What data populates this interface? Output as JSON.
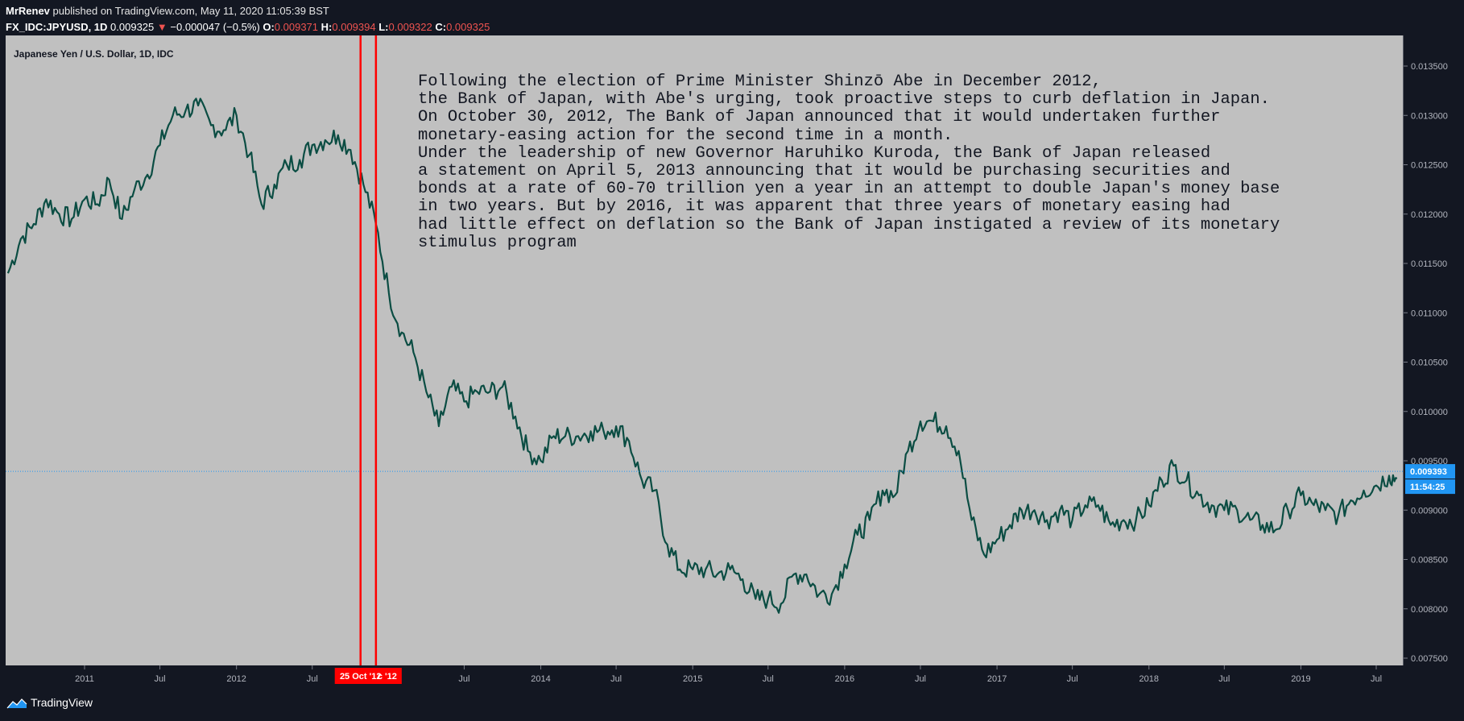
{
  "header": {
    "author": "MrRenev",
    "published": "published on TradingView.com, May 11, 2020 11:05:39 BST",
    "symbol": "FX_IDC:JPYUSD, 1D",
    "last": "0.009325",
    "change_arrow": "▼",
    "change": "−0.000047 (−0.5%)",
    "o_label": "O:",
    "o_value": "0.009371",
    "h_label": "H:",
    "h_value": "0.009394",
    "l_label": "L:",
    "l_value": "0.009322",
    "c_label": "C:",
    "c_value": "0.009325"
  },
  "legend": "Japanese Yen / U.S. Dollar, 1D, IDC",
  "annotation": "Following the election of Prime Minister Shinzō Abe in December 2012,\nthe Bank of Japan, with Abe's urging, took proactive steps to curb deflation in Japan.\nOn October 30, 2012, The Bank of Japan announced that it would undertaken further\nmonetary-easing action for the second time in a month.\nUnder the leadership of new Governor Haruhiko Kuroda, the Bank of Japan released\na statement on April 5, 2013 announcing that it would be purchasing securities and\nbonds at a rate of 60-70 trillion yen a year in an attempt to double Japan's money base\nin two years. But by 2016, it was apparent that three years of monetary easing had\nhad little effect on deflation so the Bank of Japan instigated a review of its monetary\nstimulus program",
  "footer": {
    "brand": "TradingView"
  },
  "colors": {
    "line": "#0b4d43",
    "marker": "#ff0000",
    "price_label": "#2196f3",
    "pane": "#c0c0c0",
    "background": "#131722",
    "change_down": "#ef5350"
  },
  "chart_data": {
    "type": "line",
    "series": [
      {
        "values": [
          {
            "x": "2010-07-01",
            "y": 0.0114
          },
          {
            "x": "2010-08-01",
            "y": 0.01175
          },
          {
            "x": "2010-09-01",
            "y": 0.0119
          },
          {
            "x": "2010-10-01",
            "y": 0.01215
          },
          {
            "x": "2010-11-01",
            "y": 0.012
          },
          {
            "x": "2010-12-01",
            "y": 0.01195
          },
          {
            "x": "2011-01-01",
            "y": 0.01215
          },
          {
            "x": "2011-02-01",
            "y": 0.0121
          },
          {
            "x": "2011-03-01",
            "y": 0.01235
          },
          {
            "x": "2011-04-01",
            "y": 0.01195
          },
          {
            "x": "2011-05-01",
            "y": 0.01225
          },
          {
            "x": "2011-06-01",
            "y": 0.0124
          },
          {
            "x": "2011-07-01",
            "y": 0.0127
          },
          {
            "x": "2011-08-01",
            "y": 0.013
          },
          {
            "x": "2011-09-01",
            "y": 0.01305
          },
          {
            "x": "2011-10-01",
            "y": 0.0131
          },
          {
            "x": "2011-11-01",
            "y": 0.0129
          },
          {
            "x": "2011-12-01",
            "y": 0.01285
          },
          {
            "x": "2012-01-01",
            "y": 0.013
          },
          {
            "x": "2012-02-01",
            "y": 0.0126
          },
          {
            "x": "2012-03-01",
            "y": 0.0121
          },
          {
            "x": "2012-04-01",
            "y": 0.0123
          },
          {
            "x": "2012-05-01",
            "y": 0.0125
          },
          {
            "x": "2012-06-01",
            "y": 0.01255
          },
          {
            "x": "2012-07-01",
            "y": 0.0127
          },
          {
            "x": "2012-08-01",
            "y": 0.01275
          },
          {
            "x": "2012-09-01",
            "y": 0.0128
          },
          {
            "x": "2012-10-01",
            "y": 0.01265
          },
          {
            "x": "2012-11-01",
            "y": 0.0123
          },
          {
            "x": "2012-12-01",
            "y": 0.0119
          },
          {
            "x": "2013-01-01",
            "y": 0.0112
          },
          {
            "x": "2013-02-01",
            "y": 0.0108
          },
          {
            "x": "2013-03-01",
            "y": 0.0106
          },
          {
            "x": "2013-04-01",
            "y": 0.0102
          },
          {
            "x": "2013-05-01",
            "y": 0.00985
          },
          {
            "x": "2013-06-01",
            "y": 0.01025
          },
          {
            "x": "2013-07-01",
            "y": 0.0101
          },
          {
            "x": "2013-08-01",
            "y": 0.0102
          },
          {
            "x": "2013-09-01",
            "y": 0.0102
          },
          {
            "x": "2013-10-01",
            "y": 0.01025
          },
          {
            "x": "2013-11-01",
            "y": 0.00995
          },
          {
            "x": "2013-12-01",
            "y": 0.0096
          },
          {
            "x": "2014-01-01",
            "y": 0.0095
          },
          {
            "x": "2014-02-01",
            "y": 0.00975
          },
          {
            "x": "2014-03-01",
            "y": 0.00975
          },
          {
            "x": "2014-04-01",
            "y": 0.00975
          },
          {
            "x": "2014-05-01",
            "y": 0.0098
          },
          {
            "x": "2014-06-01",
            "y": 0.0098
          },
          {
            "x": "2014-07-01",
            "y": 0.00985
          },
          {
            "x": "2014-08-01",
            "y": 0.0097
          },
          {
            "x": "2014-09-01",
            "y": 0.0093
          },
          {
            "x": "2014-10-01",
            "y": 0.0092
          },
          {
            "x": "2014-11-01",
            "y": 0.00865
          },
          {
            "x": "2014-12-01",
            "y": 0.0084
          },
          {
            "x": "2015-01-01",
            "y": 0.0084
          },
          {
            "x": "2015-02-01",
            "y": 0.0084
          },
          {
            "x": "2015-03-01",
            "y": 0.00835
          },
          {
            "x": "2015-04-01",
            "y": 0.0084
          },
          {
            "x": "2015-05-01",
            "y": 0.0083
          },
          {
            "x": "2015-06-01",
            "y": 0.0081
          },
          {
            "x": "2015-07-01",
            "y": 0.0081
          },
          {
            "x": "2015-08-01",
            "y": 0.00805
          },
          {
            "x": "2015-09-01",
            "y": 0.00835
          },
          {
            "x": "2015-10-01",
            "y": 0.00835
          },
          {
            "x": "2015-11-01",
            "y": 0.00815
          },
          {
            "x": "2015-12-01",
            "y": 0.00815
          },
          {
            "x": "2016-01-01",
            "y": 0.00845
          },
          {
            "x": "2016-02-01",
            "y": 0.00875
          },
          {
            "x": "2016-03-01",
            "y": 0.0089
          },
          {
            "x": "2016-04-01",
            "y": 0.0092
          },
          {
            "x": "2016-05-01",
            "y": 0.00915
          },
          {
            "x": "2016-06-01",
            "y": 0.0096
          },
          {
            "x": "2016-07-01",
            "y": 0.0099
          },
          {
            "x": "2016-08-01",
            "y": 0.0099
          },
          {
            "x": "2016-09-01",
            "y": 0.00985
          },
          {
            "x": "2016-10-01",
            "y": 0.0096
          },
          {
            "x": "2016-11-01",
            "y": 0.0089
          },
          {
            "x": "2016-12-01",
            "y": 0.00855
          },
          {
            "x": "2017-01-01",
            "y": 0.0087
          },
          {
            "x": "2017-02-01",
            "y": 0.00885
          },
          {
            "x": "2017-03-01",
            "y": 0.009
          },
          {
            "x": "2017-04-01",
            "y": 0.009
          },
          {
            "x": "2017-05-01",
            "y": 0.0089
          },
          {
            "x": "2017-06-01",
            "y": 0.009
          },
          {
            "x": "2017-07-01",
            "y": 0.0089
          },
          {
            "x": "2017-08-01",
            "y": 0.00905
          },
          {
            "x": "2017-09-01",
            "y": 0.00905
          },
          {
            "x": "2017-10-01",
            "y": 0.00885
          },
          {
            "x": "2017-11-01",
            "y": 0.0089
          },
          {
            "x": "2017-12-01",
            "y": 0.0089
          },
          {
            "x": "2018-01-01",
            "y": 0.00905
          },
          {
            "x": "2018-02-01",
            "y": 0.0093
          },
          {
            "x": "2018-03-01",
            "y": 0.00945
          },
          {
            "x": "2018-04-01",
            "y": 0.0093
          },
          {
            "x": "2018-05-01",
            "y": 0.00915
          },
          {
            "x": "2018-06-01",
            "y": 0.00905
          },
          {
            "x": "2018-07-01",
            "y": 0.009
          },
          {
            "x": "2018-08-01",
            "y": 0.009
          },
          {
            "x": "2018-09-01",
            "y": 0.0089
          },
          {
            "x": "2018-10-01",
            "y": 0.00885
          },
          {
            "x": "2018-11-01",
            "y": 0.0088
          },
          {
            "x": "2018-12-01",
            "y": 0.009
          },
          {
            "x": "2019-01-01",
            "y": 0.00915
          },
          {
            "x": "2019-02-01",
            "y": 0.00905
          },
          {
            "x": "2019-03-01",
            "y": 0.009
          },
          {
            "x": "2019-04-01",
            "y": 0.00895
          },
          {
            "x": "2019-05-01",
            "y": 0.0091
          },
          {
            "x": "2019-06-01",
            "y": 0.0092
          },
          {
            "x": "2019-07-01",
            "y": 0.00925
          },
          {
            "x": "2019-08-01",
            "y": 0.00935
          },
          {
            "x": "2019-08-20",
            "y": 0.00932
          }
        ]
      }
    ],
    "x_axis": {
      "ticks": [
        "2011",
        "Jul",
        "2012",
        "Jul",
        "Jul",
        "2014",
        "Jul",
        "2015",
        "Jul",
        "2016",
        "Jul",
        "2017",
        "Jul",
        "2018",
        "Jul",
        "2019",
        "Jul"
      ],
      "tick_dates": [
        "2011-01-01",
        "2011-07-01",
        "2012-01-01",
        "2012-07-01",
        "2013-07-01",
        "2014-01-01",
        "2014-07-01",
        "2015-01-01",
        "2015-07-01",
        "2016-01-01",
        "2016-07-01",
        "2017-01-01",
        "2017-07-01",
        "2018-01-01",
        "2018-07-01",
        "2019-01-01",
        "2019-07-01"
      ]
    },
    "y_axis": {
      "ticks": [
        "0.013500",
        "0.013000",
        "0.012500",
        "0.012000",
        "0.011500",
        "0.011000",
        "0.010500",
        "0.010000",
        "0.009500",
        "0.009000",
        "0.008500",
        "0.008000",
        "0.007500"
      ],
      "tick_values": [
        0.0135,
        0.013,
        0.0125,
        0.012,
        0.0115,
        0.011,
        0.0105,
        0.01,
        0.0095,
        0.009,
        0.0085,
        0.008,
        0.0075
      ]
    },
    "markers": [
      {
        "date": "2012-10-25",
        "label": "25 Oct '12"
      },
      {
        "date": "2012-12-01",
        "label": "c '12"
      }
    ],
    "last_price": {
      "value": 0.009393,
      "label": "0.009393",
      "countdown": "11:54:25"
    }
  }
}
